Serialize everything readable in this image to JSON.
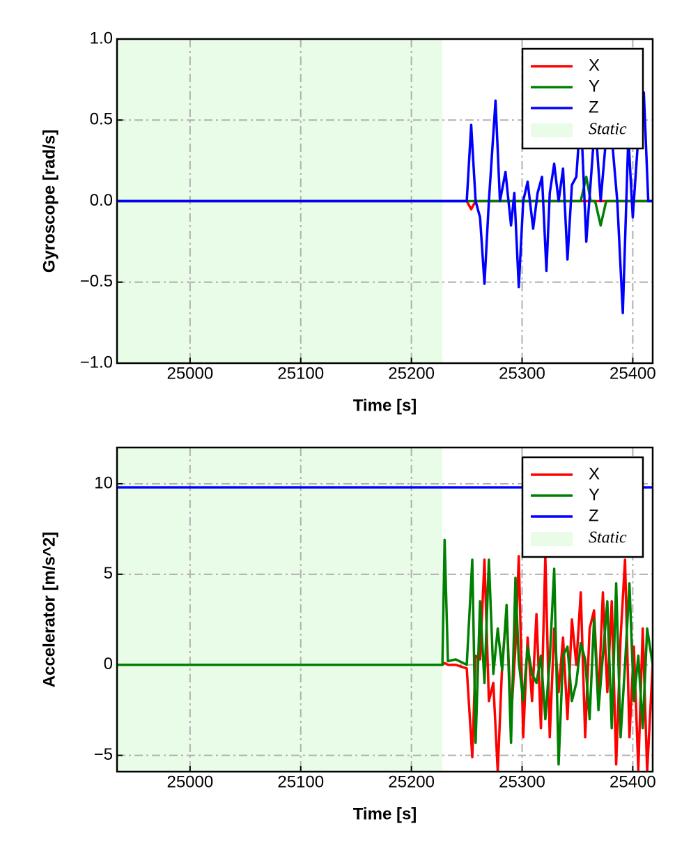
{
  "chart_data": [
    {
      "type": "line",
      "xlabel": "Time [s]",
      "ylabel": "Gyroscope [rad/s]",
      "xlim": [
        24934,
        25418
      ],
      "ylim": [
        -1.0,
        1.0
      ],
      "xticks": [
        25000,
        25100,
        25200,
        25300,
        25400
      ],
      "yticks": [
        {
          "value": -1.0,
          "label": "−1.0"
        },
        {
          "value": -0.5,
          "label": "−0.5"
        },
        {
          "value": 0.0,
          "label": "0.0"
        },
        {
          "value": 0.5,
          "label": "0.5"
        },
        {
          "value": 1.0,
          "label": "1.0"
        }
      ],
      "grid": true,
      "legend": "upper right",
      "shaded_region": {
        "name": "Static",
        "x": [
          24934,
          25228
        ],
        "color": "#e8fce8"
      },
      "x": [
        24934,
        25228,
        25250,
        25254,
        25258,
        25262,
        25266,
        25270,
        25276,
        25280,
        25285,
        25290,
        25293,
        25297,
        25301,
        25305,
        25310,
        25314,
        25318,
        25322,
        25325,
        25329,
        25333,
        25337,
        25341,
        25345,
        25349,
        25353,
        25358,
        25362,
        25366,
        25371,
        25376,
        25381,
        25386,
        25391,
        25396,
        25400,
        25405,
        25410,
        25414,
        25418
      ],
      "series": [
        {
          "name": "X",
          "color": "#ff0000",
          "values": [
            0,
            0,
            0,
            -0.05,
            0,
            0,
            0,
            0,
            0,
            0,
            0,
            0,
            0,
            0,
            0,
            0,
            0,
            0,
            0,
            0,
            0,
            0,
            0,
            0,
            0,
            0,
            0,
            0,
            0,
            0,
            0,
            0,
            0,
            0,
            0,
            0,
            0,
            0,
            0,
            0,
            0,
            0
          ]
        },
        {
          "name": "Y",
          "color": "#008000",
          "values": [
            0,
            0,
            0,
            0,
            0,
            0,
            0,
            0,
            0,
            0,
            0,
            0,
            0,
            0,
            0,
            0,
            0,
            0,
            0,
            0,
            0,
            0,
            0,
            0,
            0,
            0,
            0,
            0,
            0.15,
            0,
            0,
            -0.15,
            0,
            0,
            0,
            0,
            0,
            0,
            0,
            0,
            0,
            0
          ]
        },
        {
          "name": "Z",
          "color": "#0000ff",
          "values": [
            0,
            0,
            0,
            0.47,
            0,
            -0.1,
            -0.51,
            0,
            0.62,
            0,
            0.18,
            -0.15,
            0.05,
            -0.53,
            0,
            0.12,
            -0.17,
            0.05,
            0.15,
            -0.43,
            0.05,
            0.23,
            0,
            0.2,
            -0.36,
            0.1,
            0.15,
            0.55,
            -0.25,
            0.12,
            0.5,
            0,
            0.4,
            0.4,
            0,
            -0.69,
            0.4,
            -0.1,
            0.4,
            0.67,
            0,
            0
          ]
        }
      ]
    },
    {
      "type": "line",
      "xlabel": "Time [s]",
      "ylabel": "Accelerator [m/s^2]",
      "xlim": [
        24934,
        25418
      ],
      "ylim": [
        -5.9,
        12
      ],
      "xticks": [
        25000,
        25100,
        25200,
        25300,
        25400
      ],
      "yticks": [
        {
          "value": -5,
          "label": "−5"
        },
        0,
        5,
        10
      ],
      "grid": true,
      "legend": "upper right",
      "shaded_region": {
        "name": "Static",
        "x": [
          24934,
          25228
        ],
        "color": "#e8fce8"
      },
      "x": [
        24934,
        25228,
        25230,
        25233,
        25240,
        25250,
        25255,
        25258,
        25262,
        25266,
        25270,
        25274,
        25278,
        25282,
        25286,
        25290,
        25294,
        25297,
        25301,
        25305,
        25309,
        25313,
        25317,
        25321,
        25325,
        25329,
        25333,
        25337,
        25341,
        25345,
        25349,
        25353,
        25357,
        25361,
        25365,
        25369,
        25373,
        25377,
        25381,
        25385,
        25389,
        25393,
        25397,
        25401,
        25405,
        25409,
        25413,
        25418
      ],
      "series": [
        {
          "name": "X",
          "color": "#ff0000",
          "values": [
            0,
            0,
            0.1,
            0,
            0,
            -0.2,
            -5.1,
            0.5,
            0.3,
            5.8,
            -2,
            -1,
            -5.9,
            0,
            3,
            -3,
            1,
            6,
            -4,
            1.5,
            -2,
            2.8,
            -3.5,
            6,
            -4,
            2,
            -1.5,
            1.5,
            -3,
            2.5,
            0,
            4,
            -4,
            2,
            3,
            -2,
            4,
            -1.5,
            3.5,
            -5.5,
            1.5,
            5.8,
            -4,
            1,
            -5.8,
            2,
            -5.9,
            0
          ]
        },
        {
          "name": "Y",
          "color": "#008000",
          "values": [
            0,
            0,
            6.9,
            0.2,
            0.3,
            0,
            5.8,
            -4.3,
            3.5,
            -1,
            5.8,
            -0.5,
            2,
            -0.3,
            3.3,
            -4.3,
            4.8,
            0.2,
            -2,
            1,
            -0.5,
            -1,
            0.5,
            -3,
            0.3,
            5.3,
            -5.5,
            0.5,
            1,
            -2,
            -1,
            1.2,
            0.3,
            -3,
            2.5,
            -2.5,
            0.5,
            3.5,
            -3.5,
            4.5,
            -4,
            0,
            4.5,
            -2,
            0.5,
            -3.5,
            2,
            0
          ]
        },
        {
          "name": "Z",
          "color": "#0000ff",
          "values": [
            9.8,
            9.8,
            9.8,
            9.8,
            9.8,
            9.8,
            9.8,
            9.8,
            9.8,
            9.8,
            9.8,
            9.8,
            9.8,
            9.8,
            9.8,
            9.8,
            9.8,
            9.8,
            9.8,
            9.8,
            9.8,
            9.8,
            9.8,
            9.8,
            9.8,
            9.8,
            9.8,
            9.8,
            9.8,
            9.8,
            9.8,
            9.8,
            9.8,
            9.8,
            9.8,
            9.8,
            9.8,
            9.8,
            9.8,
            9.8,
            9.8,
            9.8,
            9.8,
            9.8,
            9.8,
            9.8,
            9.8,
            9.8
          ]
        }
      ]
    }
  ]
}
